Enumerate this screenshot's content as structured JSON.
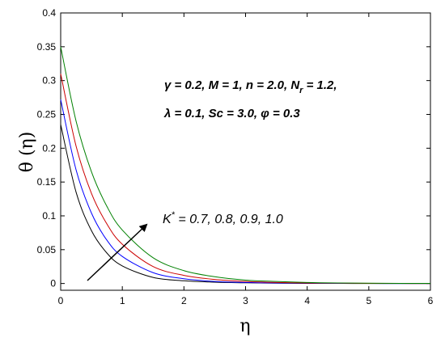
{
  "chart_data": {
    "type": "line",
    "xlabel": "η",
    "ylabel": "θ (η)",
    "xlim": [
      0,
      6
    ],
    "ylim": [
      -0.01,
      0.4
    ],
    "xticks": [
      "0",
      "1",
      "2",
      "3",
      "4",
      "5",
      "6"
    ],
    "yticks": [
      "0",
      "0.05",
      "0.1",
      "0.15",
      "0.2",
      "0.25",
      "0.3",
      "0.35",
      "0.4"
    ],
    "grid": false,
    "x": [
      0,
      0.25,
      0.5,
      0.75,
      1,
      1.5,
      2,
      2.5,
      3,
      3.5,
      4,
      4.5,
      5,
      5.5,
      6
    ],
    "series": [
      {
        "color": "#000000",
        "values": [
          0.235,
          0.135,
          0.078,
          0.045,
          0.026,
          0.009,
          0.004,
          0.002,
          0.001,
          0.0005,
          0.0002,
          0.0001,
          0.0,
          0.0,
          0.0
        ]
      },
      {
        "color": "#0000ff",
        "values": [
          0.272,
          0.168,
          0.104,
          0.064,
          0.04,
          0.016,
          0.007,
          0.003,
          0.0015,
          0.0008,
          0.0004,
          0.0002,
          0.0001,
          0.0,
          0.0
        ]
      },
      {
        "color": "#cc0000",
        "values": [
          0.31,
          0.203,
          0.133,
          0.088,
          0.058,
          0.025,
          0.012,
          0.006,
          0.003,
          0.0015,
          0.0008,
          0.0004,
          0.0002,
          0.0001,
          0.0
        ]
      },
      {
        "color": "#008000",
        "values": [
          0.35,
          0.24,
          0.165,
          0.114,
          0.079,
          0.038,
          0.019,
          0.01,
          0.005,
          0.003,
          0.0015,
          0.0008,
          0.0004,
          0.0002,
          0.0001
        ]
      }
    ],
    "annotations": {
      "params_line1": "γ = 0.2,  M = 1,  n = 2.0, N",
      "params_line1_sub": "r",
      "params_line1_end": " = 1.2,",
      "params_line2": "λ = 0.1,  Sc = 3.0,  φ = 0.3",
      "k_label": "K",
      "k_sup": "*",
      "k_values": " = 0.7, 0.8, 0.9, 1.0"
    }
  }
}
